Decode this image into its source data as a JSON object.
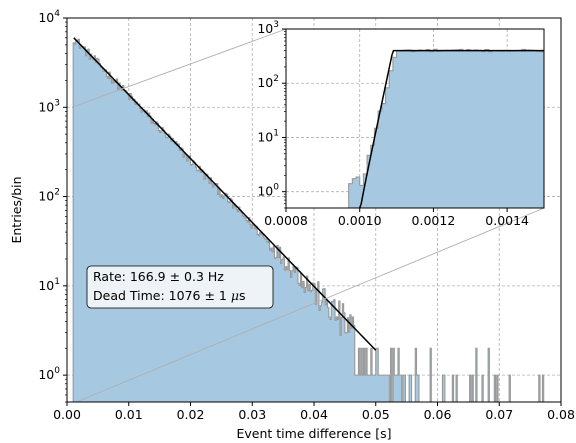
{
  "chart_data": [
    {
      "type": "histogram",
      "scale": {
        "y": "log"
      },
      "xlabel": "Event time difference [s]",
      "ylabel": "Entries/bin",
      "xlim": [
        0.0,
        0.08
      ],
      "ylim": [
        0.5,
        10000
      ],
      "xticks": [
        0.0,
        0.01,
        0.02,
        0.03,
        0.04,
        0.05,
        0.06,
        0.07,
        0.08
      ],
      "xtick_labels": [
        "0.00",
        "0.01",
        "0.02",
        "0.03",
        "0.04",
        "0.05",
        "0.06",
        "0.07",
        "0.08"
      ],
      "yticks": [
        1,
        10,
        100,
        1000,
        10000
      ],
      "ytick_labels": [
        {
          "base": "10",
          "exp": "0"
        },
        {
          "base": "10",
          "exp": "1"
        },
        {
          "base": "10",
          "exp": "2"
        },
        {
          "base": "10",
          "exp": "3"
        },
        {
          "base": "10",
          "exp": "4"
        }
      ],
      "grid": true,
      "series": [
        {
          "kind": "histogram",
          "color": "#a6c8e0",
          "edge_color": "#999999",
          "peak": {
            "x": 0.0011,
            "y": 6000
          },
          "rate_hz": 166.9,
          "dead_time_s": 0.001076,
          "tail_end_x": 0.078
        },
        {
          "kind": "fit_line",
          "color": "#000000",
          "points": [
            {
              "x": 0.0011,
              "y": 6000
            },
            {
              "x": 0.05,
              "y": 1.9
            }
          ]
        }
      ],
      "annotation": {
        "line1": "Rate: 166.9 ± 0.3 Hz",
        "line2_prefix": "Dead Time: 1076 ± 1 ",
        "line2_unit_italic": "μ",
        "line2_unit": "s",
        "position": "lower-left"
      }
    },
    {
      "type": "histogram",
      "role": "inset",
      "position": "top-right",
      "scale": {
        "y": "log"
      },
      "xlim": [
        0.0008,
        0.0015
      ],
      "ylim": [
        0.5,
        1000
      ],
      "xticks": [
        0.0008,
        0.001,
        0.0012,
        0.0014
      ],
      "xtick_labels": [
        "0.0008",
        "0.0010",
        "0.0012",
        "0.0014"
      ],
      "yticks": [
        1,
        10,
        100,
        1000
      ],
      "ytick_labels": [
        {
          "base": "10",
          "exp": "0"
        },
        {
          "base": "10",
          "exp": "1"
        },
        {
          "base": "10",
          "exp": "2"
        },
        {
          "base": "10",
          "exp": "3"
        }
      ],
      "grid": true,
      "rise_start_x": 0.001,
      "plateau_y": 400
    }
  ]
}
